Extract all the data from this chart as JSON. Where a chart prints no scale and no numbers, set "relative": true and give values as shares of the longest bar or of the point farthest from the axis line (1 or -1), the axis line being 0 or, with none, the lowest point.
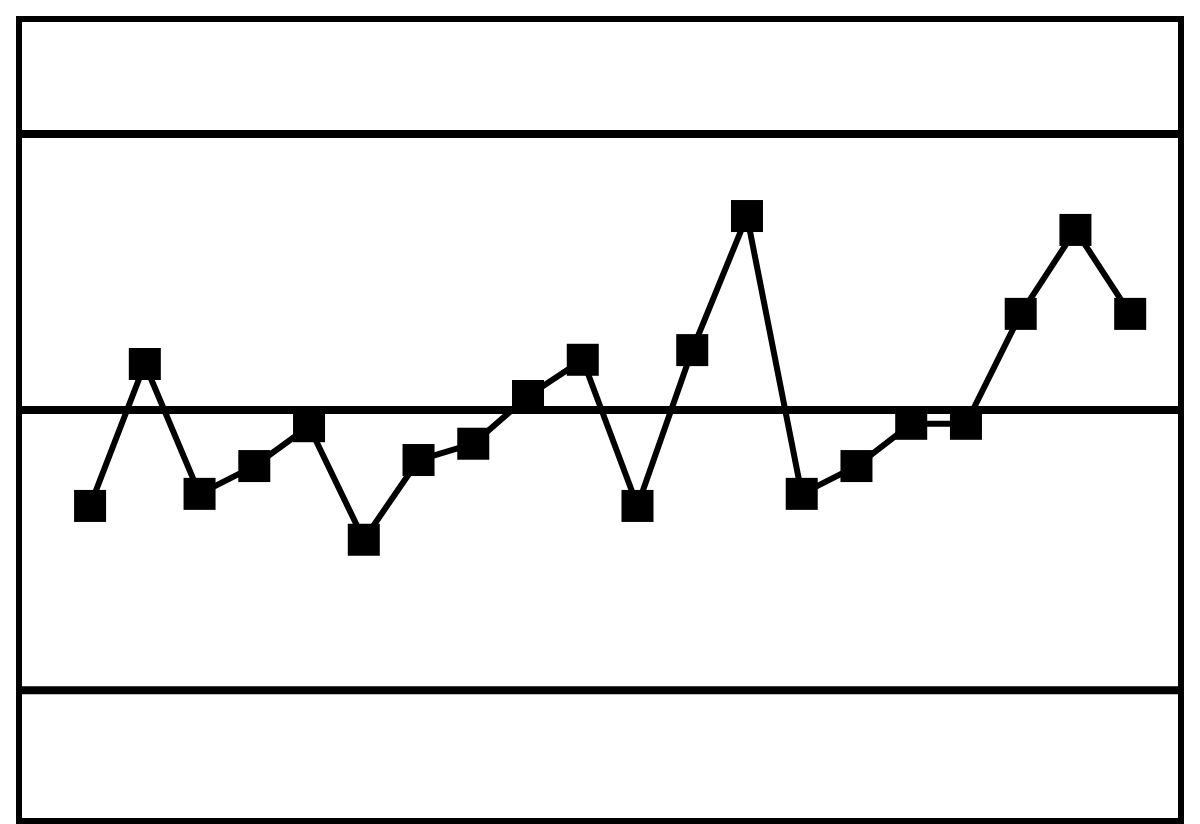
{
  "chart_data": {
    "type": "line",
    "relative": true,
    "tick_labels": false,
    "marker": "square",
    "line_style": "solid",
    "categories": [
      null,
      null,
      null,
      null,
      null,
      null,
      null,
      null,
      null,
      null,
      null,
      null,
      null,
      null,
      null,
      null,
      null,
      null,
      null,
      null
    ],
    "series": [
      {
        "color": "#000000",
        "values": [
          0.52,
          0.755,
          0.54,
          0.586,
          0.652,
          0.464,
          0.596,
          0.623,
          0.702,
          0.762,
          0.52,
          0.778,
          1,
          0.54,
          0.586,
          0.656,
          0.656,
          0.838,
          0.977,
          0.838
        ]
      }
    ],
    "ref_lines": [
      {
        "axis": "y",
        "value": 1.136,
        "color": "#000000",
        "line_style": "solid"
      },
      {
        "axis": "y",
        "value": 0.679,
        "color": "#000000",
        "line_style": "solid"
      },
      {
        "axis": "y",
        "value": 0.215,
        "color": "#000000",
        "line_style": "solid"
      }
    ]
  }
}
